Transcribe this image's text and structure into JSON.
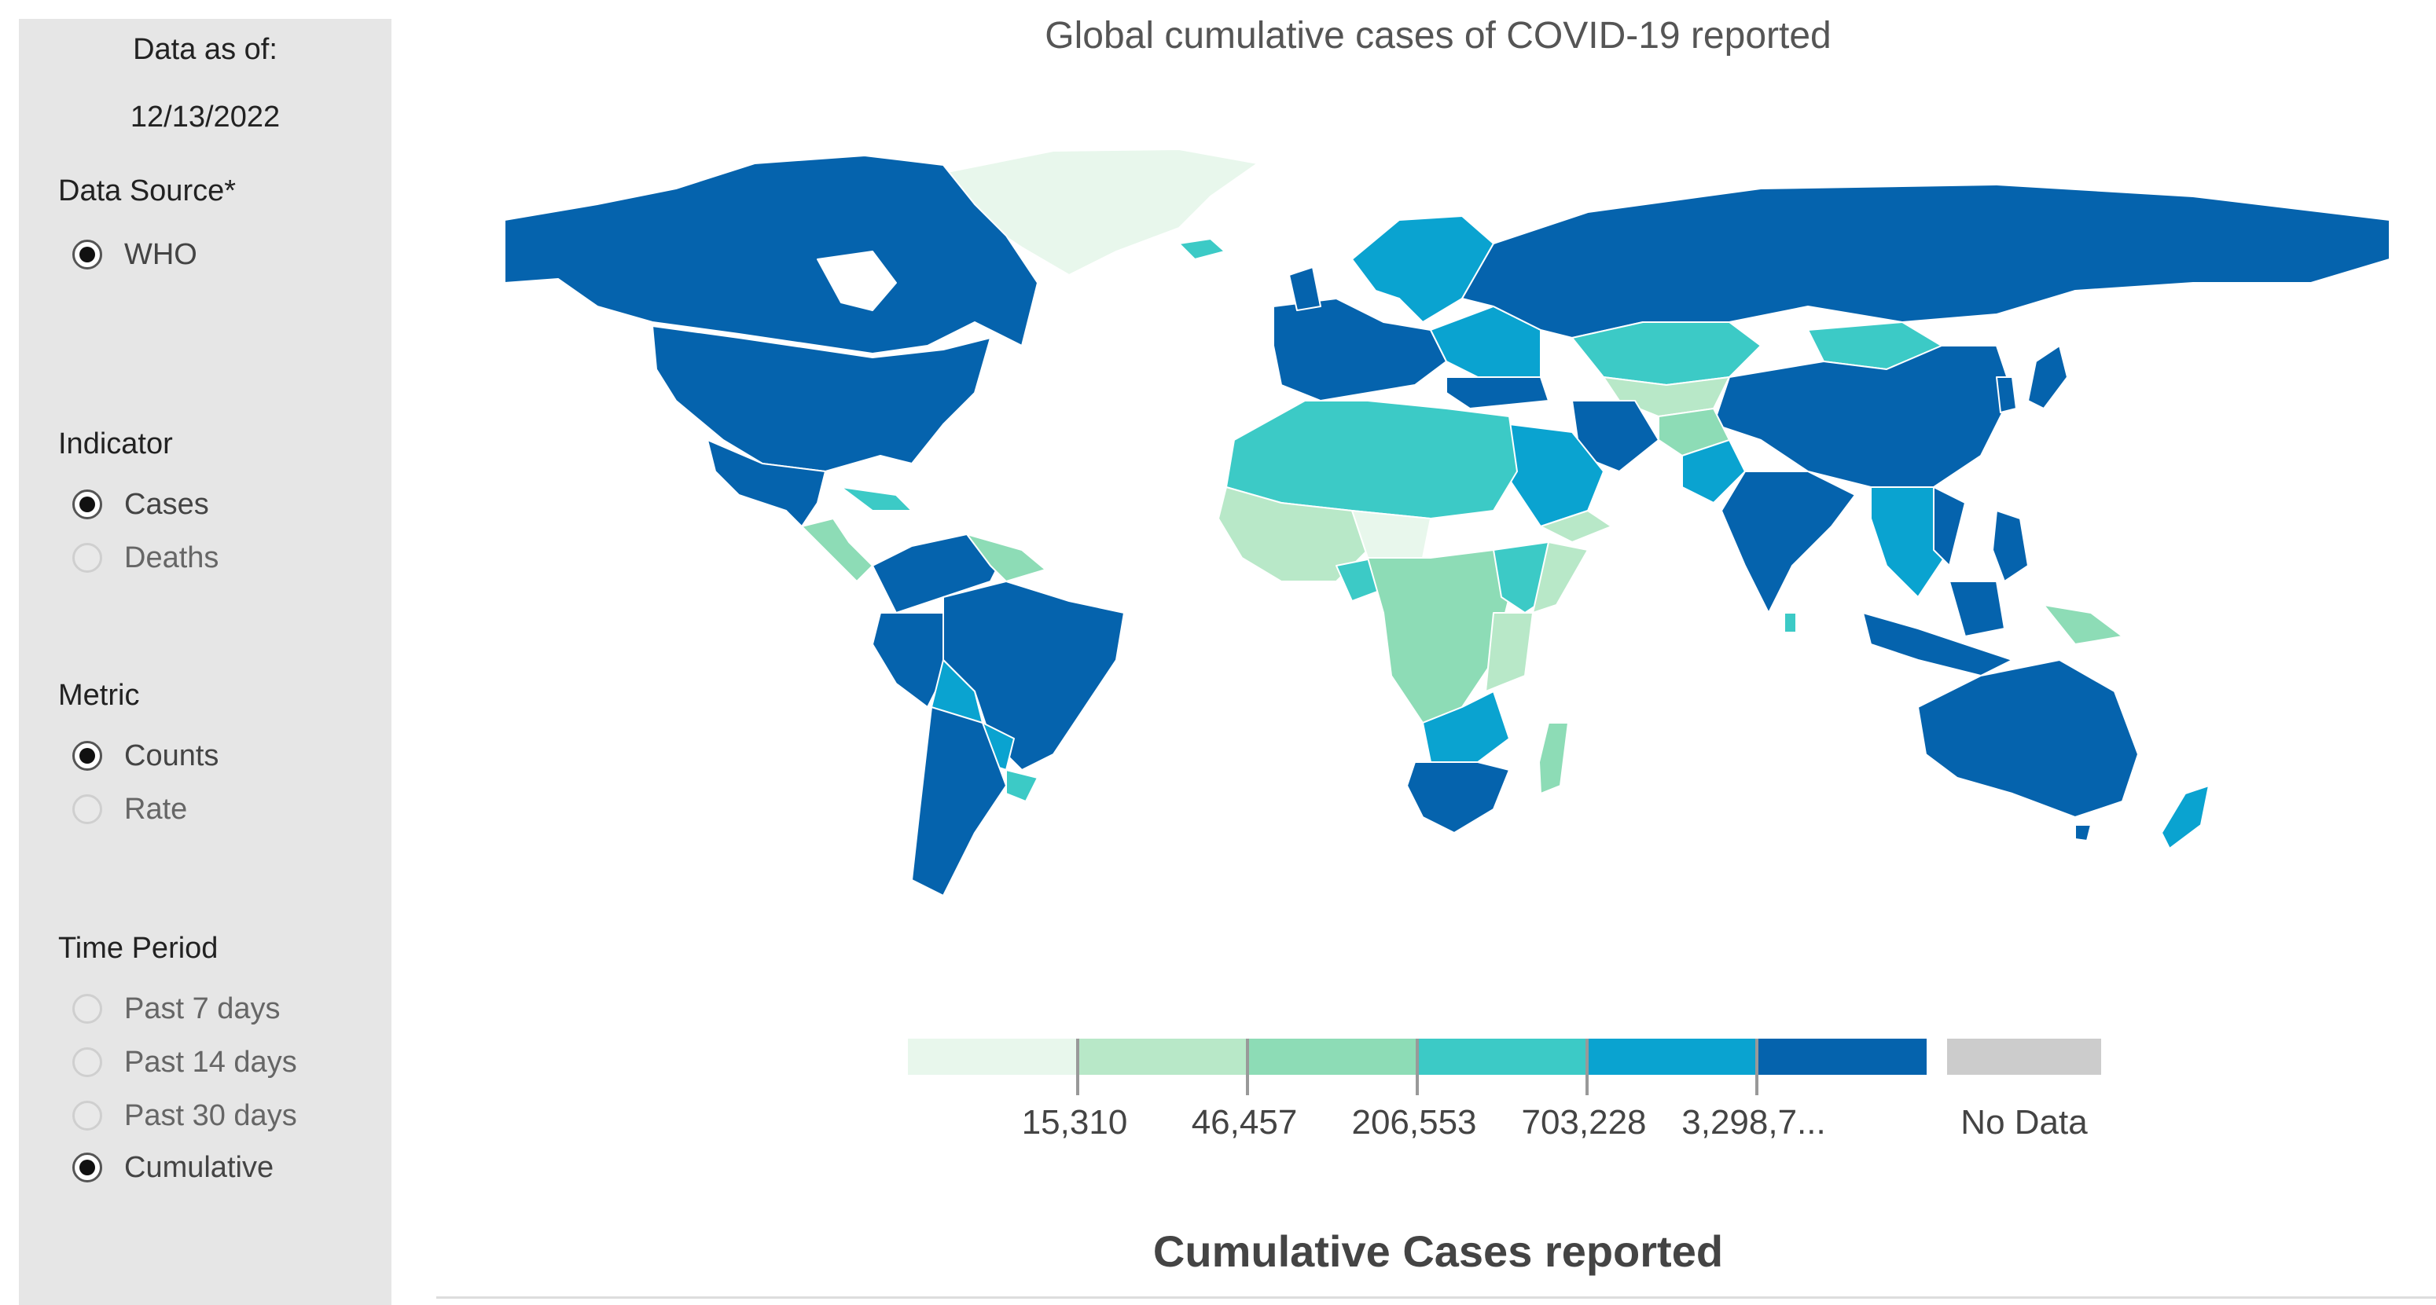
{
  "sidebar": {
    "data_as_of_label": "Data as of:",
    "data_as_of_date": "12/13/2022",
    "data_source": {
      "label": "Data Source*",
      "options": [
        "WHO"
      ],
      "selected": "WHO"
    },
    "indicator": {
      "label": "Indicator",
      "options": [
        "Cases",
        "Deaths"
      ],
      "selected": "Cases"
    },
    "metric": {
      "label": "Metric",
      "options": [
        "Counts",
        "Rate"
      ],
      "selected": "Counts"
    },
    "time_period": {
      "label": "Time Period",
      "options": [
        "Past 7 days",
        "Past 14 days",
        "Past 30 days",
        "Cumulative"
      ],
      "selected": "Cumulative"
    }
  },
  "map": {
    "title": "Global cumulative cases of COVID-19 reported",
    "legend": {
      "breaks": [
        "15,310",
        "46,457",
        "206,553",
        "703,228",
        "3,298,7..."
      ],
      "colors": [
        "#e8f7ec",
        "#b8e8c8",
        "#8ddcb6",
        "#3ccac6",
        "#0aa3d0",
        "#0563ad"
      ],
      "no_data_label": "No Data",
      "no_data_color": "#cccccc"
    }
  },
  "table": {
    "title": "Cumulative Cases reported"
  }
}
